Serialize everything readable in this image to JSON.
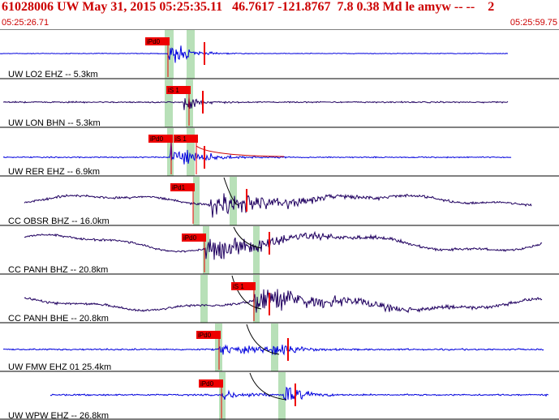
{
  "header": {
    "title": "61028006 UW May 31, 2015 05:25:35.11   46.7617 -121.8767  7.8 0.38 Md le amyw -- --    2",
    "start_time": "05:25:26.71",
    "end_time": "05:25:59.75"
  },
  "colors": {
    "header_text": "#cc0000",
    "blue_trace": "#0000dd",
    "purple_trace": "#200060",
    "pick": "#ee0000",
    "window_band": "#b8e0b8"
  },
  "traces": [
    {
      "label": "UW LO2 EHZ -- 5.3km",
      "color": "blue",
      "picks": [
        "iPd0"
      ]
    },
    {
      "label": "UW LON BHN -- 5.3km",
      "color": "purple",
      "picks": [
        "iS 1"
      ]
    },
    {
      "label": "UW RER EHZ -- 6.9km",
      "color": "blue",
      "picks": [
        "iPd0",
        "iS 1"
      ]
    },
    {
      "label": "CC OBSR BHZ -- 16.0km",
      "color": "purple",
      "picks": [
        "iPd1"
      ]
    },
    {
      "label": "CC PANH BHZ -- 20.8km",
      "color": "purple",
      "picks": [
        "iPd0"
      ]
    },
    {
      "label": "CC PANH BHE -- 20.8km",
      "color": "purple",
      "picks": [
        "iS 1"
      ]
    },
    {
      "label": "UW FMW EHZ 01 25.4km",
      "color": "blue",
      "picks": [
        "iPd0"
      ]
    },
    {
      "label": "UW WPW EHZ -- 26.8km",
      "color": "blue",
      "picks": [
        "iPd0"
      ]
    }
  ]
}
